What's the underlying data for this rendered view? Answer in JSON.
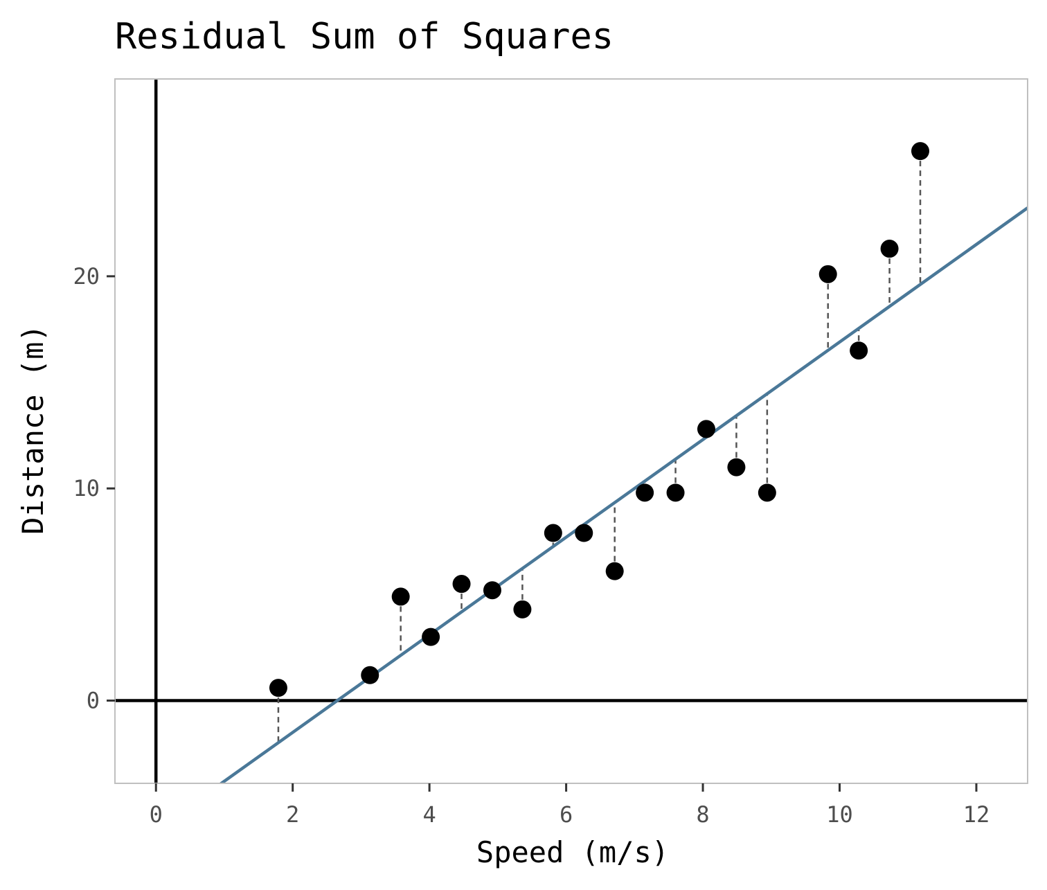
{
  "chart_data": {
    "type": "scatter",
    "title": "Residual Sum of Squares",
    "xlabel": "Speed (m/s)",
    "ylabel": "Distance (m)",
    "xlim": [
      -0.6,
      12.75
    ],
    "ylim": [
      -3.9,
      29.3
    ],
    "x_ticks": [
      0,
      2,
      4,
      6,
      8,
      10,
      12
    ],
    "y_ticks": [
      0,
      10,
      20
    ],
    "grid": false,
    "colors": {
      "points": "#000000",
      "fit_line": "#4a7898",
      "residuals": "#555555",
      "axes_lines": "#000000",
      "panel_border": "#bfbfbf"
    },
    "fit_line": {
      "slope": 2.3,
      "intercept": -6.1
    },
    "points": [
      {
        "x": 1.79,
        "y": 0.6
      },
      {
        "x": 3.13,
        "y": 1.2
      },
      {
        "x": 3.58,
        "y": 4.9
      },
      {
        "x": 4.02,
        "y": 3.0
      },
      {
        "x": 4.47,
        "y": 5.5
      },
      {
        "x": 4.92,
        "y": 5.2
      },
      {
        "x": 5.36,
        "y": 4.3
      },
      {
        "x": 5.81,
        "y": 7.9
      },
      {
        "x": 6.26,
        "y": 7.9
      },
      {
        "x": 6.71,
        "y": 6.1
      },
      {
        "x": 7.15,
        "y": 9.8
      },
      {
        "x": 7.6,
        "y": 9.8
      },
      {
        "x": 8.05,
        "y": 12.8
      },
      {
        "x": 8.49,
        "y": 11.0
      },
      {
        "x": 8.94,
        "y": 9.8
      },
      {
        "x": 9.83,
        "y": 20.1
      },
      {
        "x": 10.28,
        "y": 16.5
      },
      {
        "x": 10.73,
        "y": 21.3
      },
      {
        "x": 11.18,
        "y": 25.9
      }
    ]
  }
}
